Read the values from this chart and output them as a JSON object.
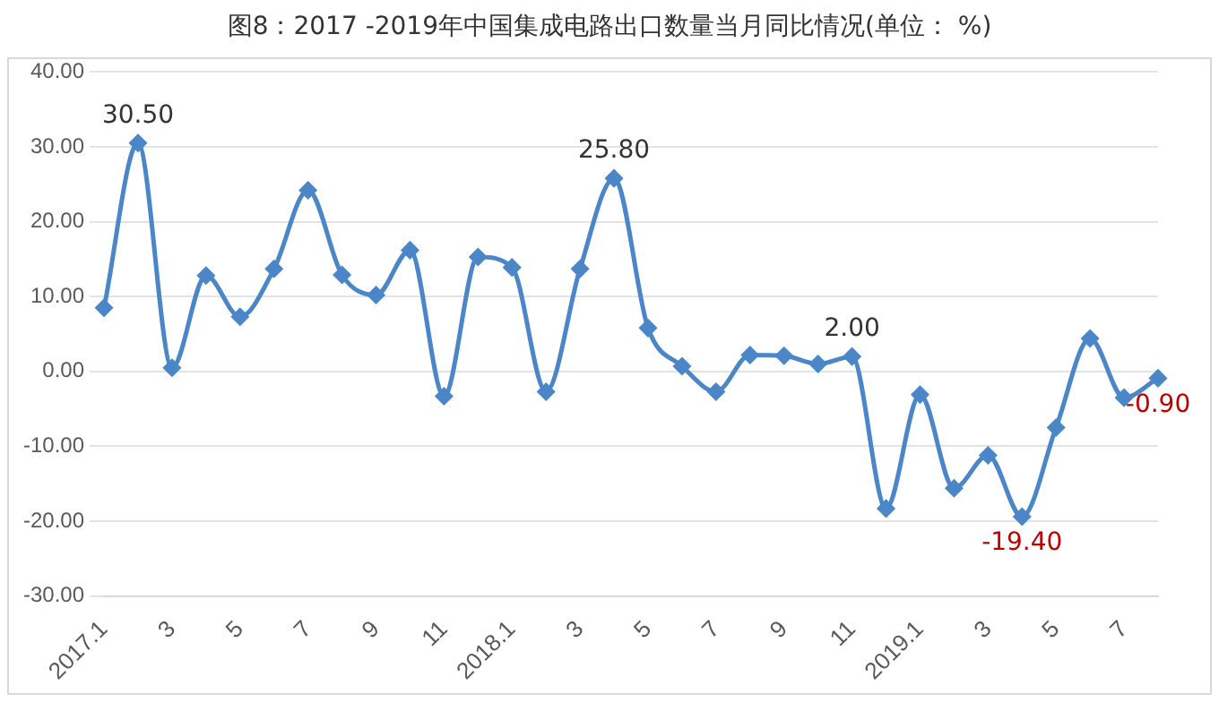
{
  "chart_data": {
    "type": "line",
    "title": "图8：2017 -2019年中国集成电路出口数量当月同比情况(单位： %)",
    "categories": [
      "2017.1",
      null,
      "3",
      null,
      "5",
      null,
      "7",
      null,
      "9",
      null,
      "11",
      null,
      "2018.1",
      null,
      "3",
      null,
      "5",
      null,
      "7",
      null,
      "9",
      null,
      "11",
      null,
      "2019.1",
      null,
      "3",
      null,
      "5",
      null,
      "7",
      null
    ],
    "series": [
      {
        "color": "#4a86c8",
        "values": [
          8.5,
          30.5,
          0.5,
          12.8,
          7.3,
          13.7,
          24.2,
          12.9,
          10.2,
          16.2,
          -3.3,
          15.3,
          13.9,
          -2.7,
          13.7,
          25.8,
          5.8,
          0.7,
          -2.7,
          2.2,
          2.1,
          1.0,
          2.0,
          -18.3,
          -3.1,
          -15.6,
          -11.2,
          -19.4,
          -7.5,
          4.4,
          -3.5,
          -0.9
        ],
        "value_labels": [
          null,
          "30.50",
          null,
          null,
          null,
          null,
          null,
          null,
          null,
          null,
          null,
          null,
          null,
          null,
          null,
          "25.80",
          null,
          null,
          null,
          null,
          null,
          null,
          "2.00",
          null,
          null,
          null,
          null,
          "-19.40",
          null,
          null,
          null,
          "-0.90"
        ]
      }
    ],
    "ylim": [
      -30,
      40
    ],
    "yticks": [
      {
        "value": -30,
        "label": "-30.00"
      },
      {
        "value": -20,
        "label": "-20.00"
      },
      {
        "value": -10,
        "label": "-10.00"
      },
      {
        "value": 0,
        "label": "0.00"
      },
      {
        "value": 10,
        "label": "10.00"
      },
      {
        "value": 20,
        "label": "20.00"
      },
      {
        "value": 30,
        "label": "30.00"
      },
      {
        "value": 40,
        "label": "40.00"
      }
    ],
    "grid": "y",
    "marker": "diamond",
    "line_style": "solid",
    "legend": false
  }
}
